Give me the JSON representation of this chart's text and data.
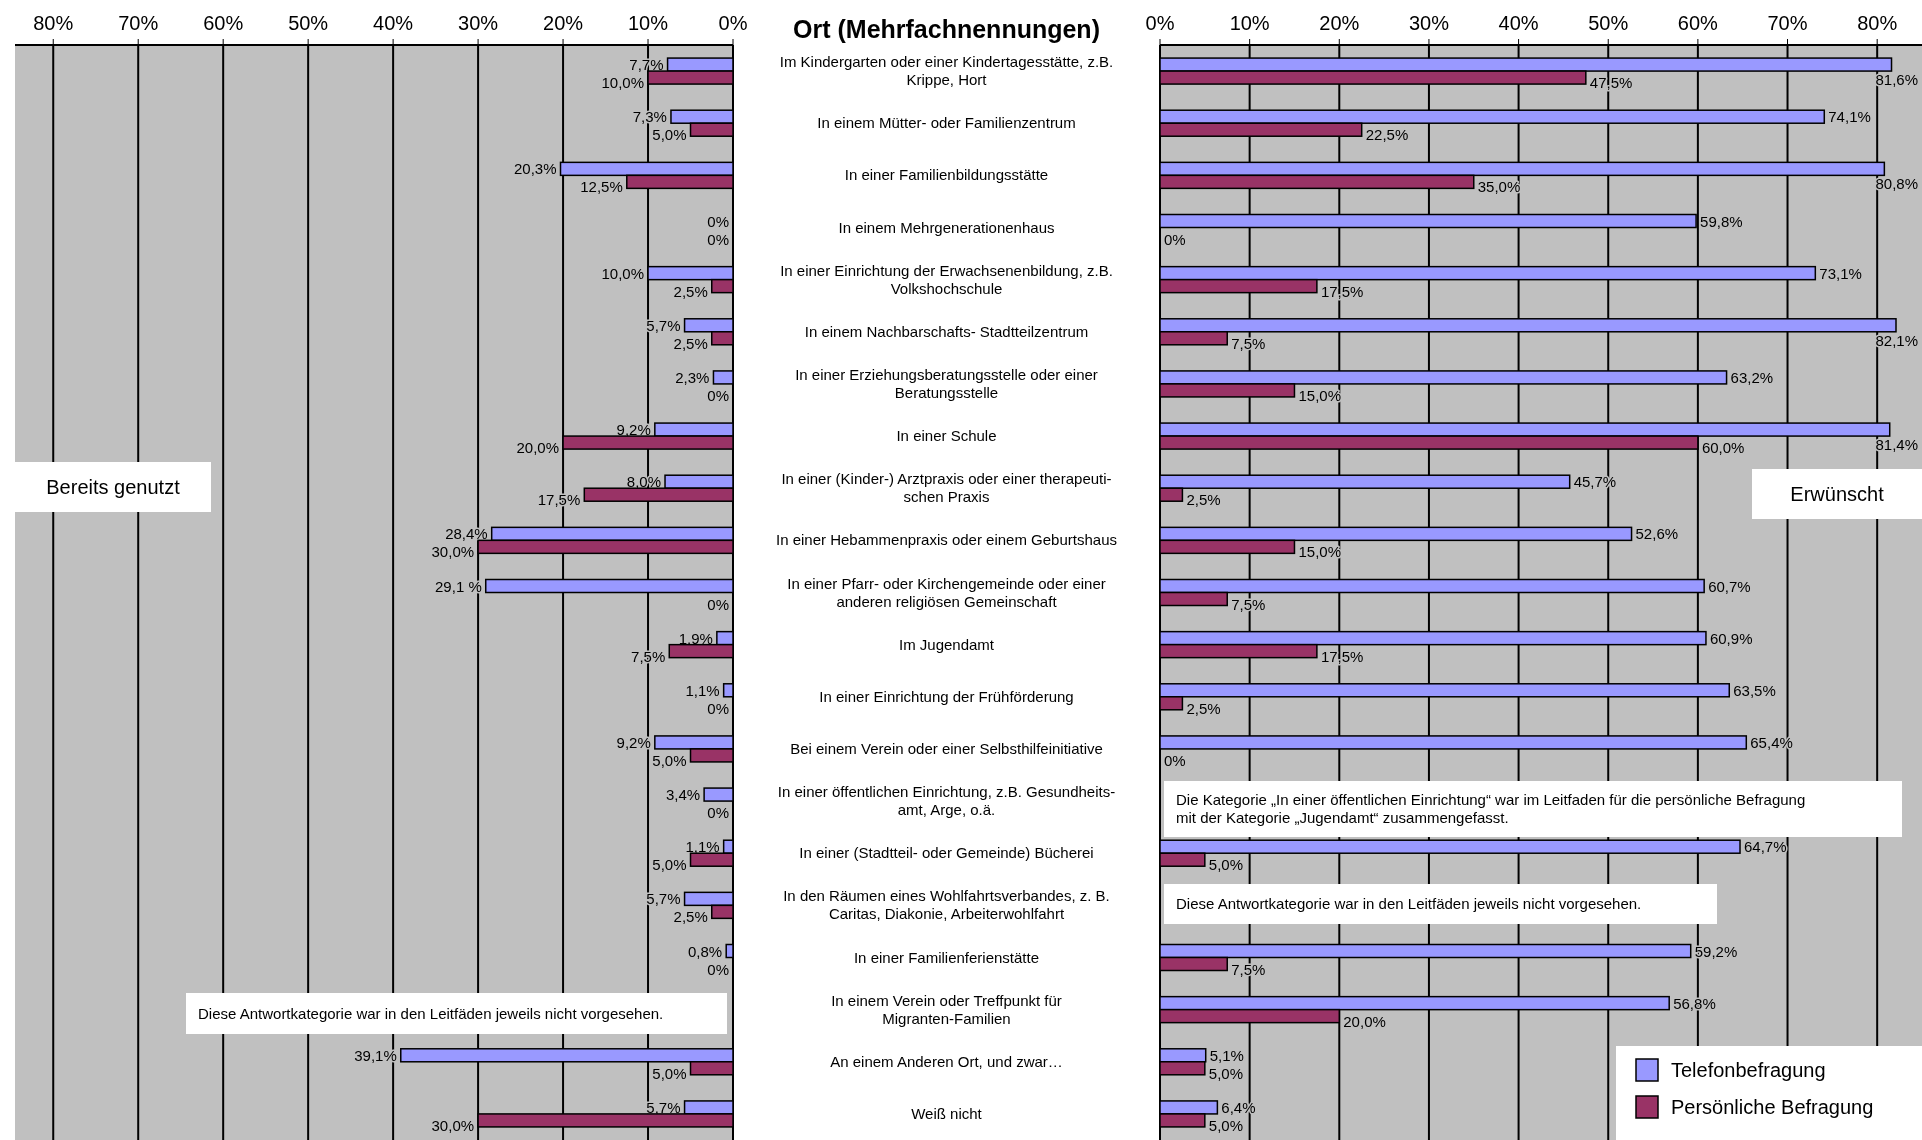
{
  "chart_data": [
    {
      "type": "bar",
      "orientation": "horizontal",
      "categories": [
        "Im Kindergarten oder einer Kindertagesstätte, z.B.\nKrippe, Hort",
        "In einem Mütter- oder Familienzentrum",
        "In einer Familienbildungsstätte",
        "In einem Mehrgenerationenhaus",
        "In einer Einrichtung der Erwachsenenbildung, z.B.\nVolkshochschule",
        "In einem Nachbarschafts- Stadtteilzentrum",
        "In einer Erziehungsberatungsstelle oder einer\nBeratungsstelle",
        "In einer Schule",
        "In einer (Kinder-) Arztpraxis oder einer therapeuti-\nschen Praxis",
        "In einer Hebammenpraxis oder einem Geburtshaus",
        "In einer Pfarr- oder Kirchengemeinde oder einer\nanderen religiösen Gemeinschaft",
        "Im Jugendamt",
        "In einer Einrichtung der Frühförderung",
        "Bei einem Verein oder einer Selbsthilfeinitiative",
        "In einer öffentlichen Einrichtung, z.B. Gesundheits-\namt, Arge, o.ä.",
        "In einer (Stadtteil- oder Gemeinde) Bücherei",
        "In den Räumen eines Wohlfahrtsverbandes, z. B.\nCaritas, Diakonie, Arbeiterwohlfahrt",
        "In einer Familienferienstätte",
        "In einem Verein oder Treffpunkt für\nMigranten-Familien",
        "An einem Anderen Ort, und zwar…",
        "Weiß nicht"
      ],
      "series": [
        {
          "color": "#9999ff",
          "values": [
            7.7,
            7.3,
            20.3,
            0,
            10.0,
            5.7,
            2.3,
            9.2,
            8.0,
            28.4,
            29.1,
            1.9,
            1.1,
            9.2,
            3.4,
            1.1,
            5.7,
            0.8,
            null,
            39.1,
            5.7
          ],
          "value_labels": [
            "7,7%",
            "7,3%",
            "20,3%",
            "0%",
            "10,0%",
            "5,7%",
            "2,3%",
            "9,2%",
            "8,0%",
            "28,4%",
            "29,1 %",
            "1,9%",
            "1,1%",
            "9,2%",
            "3,4%",
            "1,1%",
            "5,7%",
            "0,8%",
            null,
            "39,1%",
            "5,7%"
          ]
        },
        {
          "color": "#993366",
          "values": [
            10.0,
            5.0,
            12.5,
            0,
            2.5,
            2.5,
            0,
            20.0,
            17.5,
            30.0,
            0,
            7.5,
            0,
            5.0,
            0,
            5.0,
            2.5,
            0,
            null,
            5.0,
            30.0
          ],
          "value_labels": [
            "10,0%",
            "5,0%",
            "12,5%",
            "0%",
            "2,5%",
            "2,5%",
            "0%",
            "20,0%",
            "17,5%",
            "30,0%",
            "0%",
            "7,5%",
            "0%",
            "5,0%",
            "0%",
            "5,0%",
            "2,5%",
            "0%",
            null,
            "5,0%",
            "30,0%"
          ]
        }
      ],
      "xlim": [
        84.5,
        0
      ],
      "xticks": [
        {
          "value": 80,
          "label": "80%"
        },
        {
          "value": 70,
          "label": "70%"
        },
        {
          "value": 60,
          "label": "60%"
        },
        {
          "value": 50,
          "label": "50%"
        },
        {
          "value": 40,
          "label": "40%"
        },
        {
          "value": 30,
          "label": "30%"
        },
        {
          "value": 20,
          "label": "20%"
        },
        {
          "value": 10,
          "label": "10%"
        },
        {
          "value": 0,
          "label": "0%"
        }
      ],
      "grid": "x",
      "title": "Ort (Mehrfachnennungen)",
      "annotations": [
        "Bereits genutzt",
        "Diese Antwortkategorie war in den Leitfäden jeweils nicht vorgesehen."
      ]
    },
    {
      "type": "bar",
      "orientation": "horizontal",
      "tick_labels": "x",
      "categories": [
        null,
        null,
        null,
        null,
        null,
        null,
        null,
        null,
        null,
        null,
        null,
        null,
        null,
        null,
        null,
        null,
        null,
        null,
        null,
        null,
        null
      ],
      "series": [
        {
          "name": "Telefonbefragung",
          "color": "#9999ff",
          "values": [
            81.6,
            74.1,
            80.8,
            59.8,
            73.1,
            82.1,
            63.2,
            81.4,
            45.7,
            52.6,
            60.7,
            60.9,
            63.5,
            65.4,
            null,
            64.7,
            null,
            59.2,
            56.8,
            5.1,
            6.4
          ],
          "value_labels": [
            "81,6%",
            "74,1%",
            "80,8%",
            "59,8%",
            "73,1%",
            "82,1%",
            "63,2%",
            "81,4%",
            "45,7%",
            "52,6%",
            "60,7%",
            "60,9%",
            "63,5%",
            "65,4%",
            null,
            "64,7%",
            null,
            "59,2%",
            "56,8%",
            "5,1%",
            "6,4%"
          ]
        },
        {
          "name": "Persönliche Befragung",
          "color": "#993366",
          "values": [
            47.5,
            22.5,
            35.0,
            0,
            17.5,
            7.5,
            15.0,
            60.0,
            2.5,
            15.0,
            7.5,
            17.5,
            2.5,
            0,
            null,
            5.0,
            null,
            7.5,
            20.0,
            5.0,
            5.0
          ],
          "value_labels": [
            "47,5%",
            "22,5%",
            "35,0%",
            "0%",
            "17,5%",
            "7,5%",
            "15,0%",
            "60,0%",
            "2,5%",
            "15,0%",
            "7,5%",
            "17,5%",
            "2,5%",
            "0%",
            null,
            "5,0%",
            null,
            "7,5%",
            "20,0%",
            "5,0%",
            "5,0%"
          ]
        }
      ],
      "xlim": [
        0,
        85
      ],
      "xticks": [
        {
          "value": 0,
          "label": "0%"
        },
        {
          "value": 10,
          "label": "10%"
        },
        {
          "value": 20,
          "label": "20%"
        },
        {
          "value": 30,
          "label": "30%"
        },
        {
          "value": 40,
          "label": "40%"
        },
        {
          "value": 50,
          "label": "50%"
        },
        {
          "value": 60,
          "label": "60%"
        },
        {
          "value": 70,
          "label": "70%"
        },
        {
          "value": 80,
          "label": "80%"
        }
      ],
      "grid": "x",
      "legend": "bottom right",
      "annotations": [
        "Erwünscht",
        "Die Kategorie „In einer öffentlichen Einrichtung“ war im Leitfaden für die persönliche Befragung mit der Kategorie „Jugendamt“ zusammengefasst.",
        "Diese Antwortkategorie war in den Leitfäden jeweils nicht vorgesehen."
      ]
    }
  ]
}
